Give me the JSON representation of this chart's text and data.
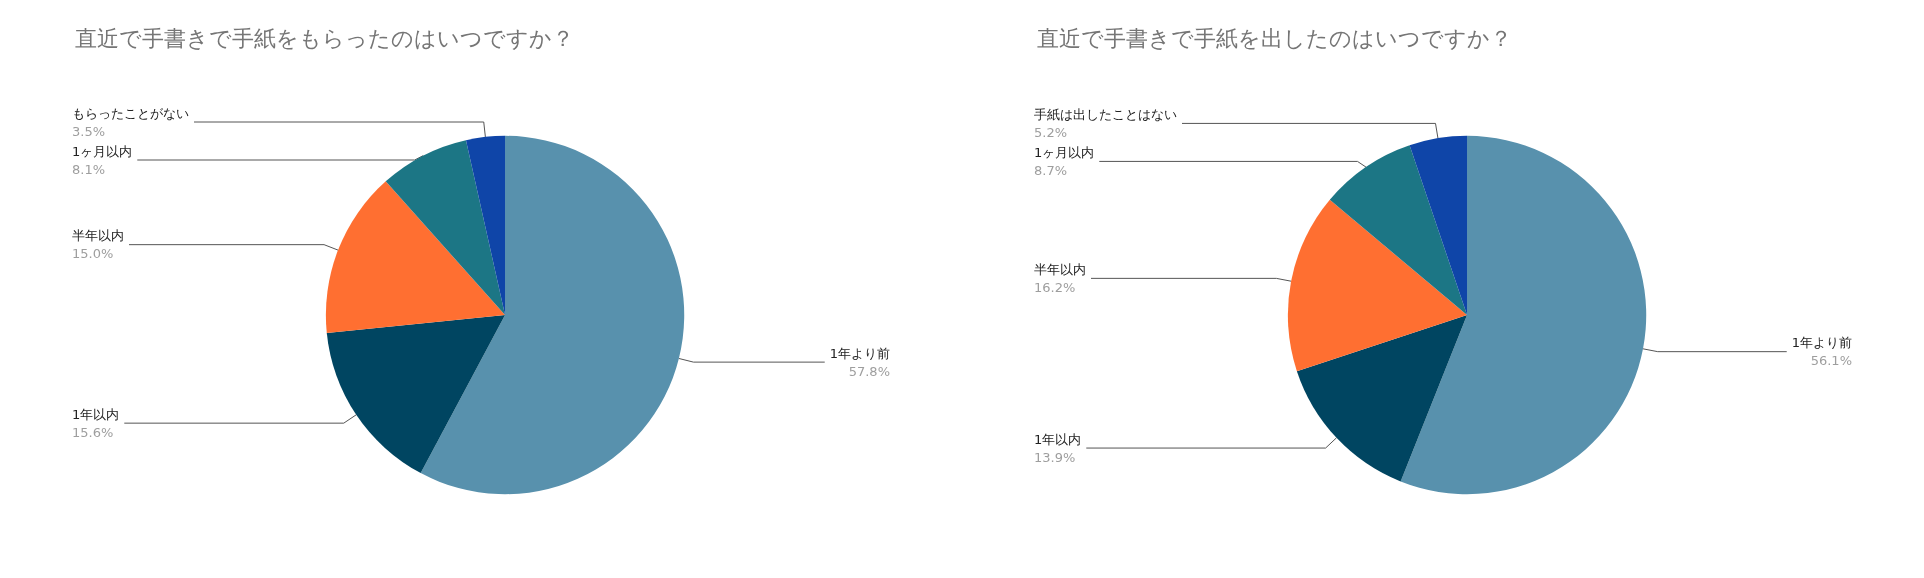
{
  "chart_data": [
    {
      "type": "pie",
      "title": "直近で手書きで手紙をもらったのはいつですか？",
      "categories": [
        "1年より前",
        "1年以内",
        "半年以内",
        "1ヶ月以内",
        "もらったことがない"
      ],
      "values": [
        57.8,
        15.6,
        15.0,
        8.1,
        3.5
      ],
      "value_labels": [
        "57.8%",
        "15.6%",
        "15.0%",
        "8.1%",
        "3.5%"
      ],
      "colors": [
        "#5891ad",
        "#004561",
        "#ff6f31",
        "#1c7685",
        "#0f45a8"
      ],
      "legend": false
    },
    {
      "type": "pie",
      "title": "直近で手書きで手紙を出したのはいつですか？",
      "categories": [
        "1年より前",
        "1年以内",
        "半年以内",
        "1ヶ月以内",
        "手紙は出したことはない"
      ],
      "values": [
        56.1,
        13.9,
        16.2,
        8.7,
        5.2
      ],
      "value_labels": [
        "56.1%",
        "13.9%",
        "16.2%",
        "8.7%",
        "5.2%"
      ],
      "colors": [
        "#5891ad",
        "#004561",
        "#ff6f31",
        "#1c7685",
        "#0f45a8"
      ],
      "legend": false
    }
  ]
}
